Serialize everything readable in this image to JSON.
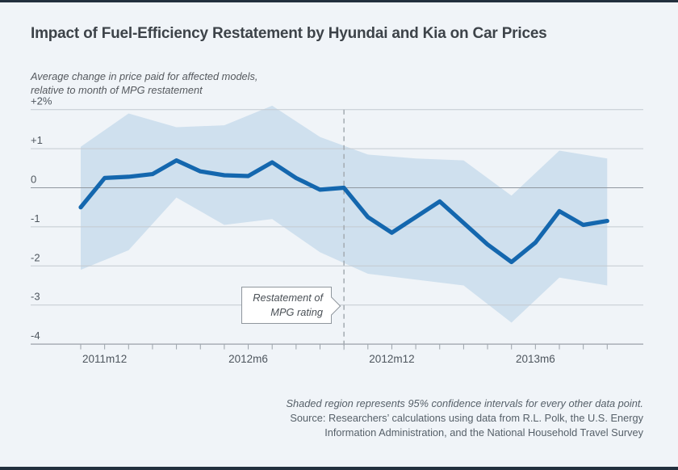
{
  "header": {
    "title": "Impact of Fuel-Efficiency Restatement by Hyundai and Kia on Car Prices",
    "subtitle_line1": "Average change in price paid for affected models,",
    "subtitle_line2": "relative to month of MPG restatement"
  },
  "annotation_box": {
    "line1": "Restatement of",
    "line2": "MPG rating"
  },
  "footer": {
    "note": "Shaded region represents 95% confidence intervals for every other data point.",
    "source_line1": "Source: Researchers’ calculations using data from R.L. Polk, the U.S. Energy",
    "source_line2": "Information Administration, and the National Household Travel Survey"
  },
  "colors": {
    "background": "#f0f4f8",
    "accent_line": "#1467ae",
    "ci_band": "#cfe0ee",
    "gridline": "#c3c9d0",
    "zero_line": "#9097a0",
    "axis": "#9aa1a9",
    "dash_line": "#a3aab1",
    "frame_bar": "#22303e",
    "tick_label": "#4e565e"
  },
  "chart_data": {
    "type": "line",
    "title": "Impact of Fuel-Efficiency Restatement by Hyundai and Kia on Car Prices",
    "ylabel": "Average change in price paid for affected models, relative to month of MPG restatement",
    "ylim": [
      -4,
      2
    ],
    "grid": true,
    "x": [
      "2011m11",
      "2011m12",
      "2012m1",
      "2012m2",
      "2012m3",
      "2012m4",
      "2012m5",
      "2012m6",
      "2012m7",
      "2012m8",
      "2012m9",
      "2012m10",
      "2012m11",
      "2012m12",
      "2013m1",
      "2013m2",
      "2013m3",
      "2013m4",
      "2013m5",
      "2013m6",
      "2013m7",
      "2013m8",
      "2013m9"
    ],
    "values": [
      -0.5,
      0.25,
      0.28,
      0.35,
      0.7,
      0.42,
      0.32,
      0.3,
      0.65,
      0.25,
      -0.05,
      0,
      -0.75,
      -1.15,
      -0.75,
      -0.35,
      -0.9,
      -1.45,
      -1.9,
      -1.4,
      -0.6,
      -0.95,
      -0.85
    ],
    "ci": [
      {
        "x": "2011m11",
        "lo": -2.1,
        "hi": 1.05
      },
      {
        "x": "2012m1",
        "lo": -1.6,
        "hi": 1.9
      },
      {
        "x": "2012m3",
        "lo": -0.25,
        "hi": 1.55
      },
      {
        "x": "2012m5",
        "lo": -0.95,
        "hi": 1.6
      },
      {
        "x": "2012m7",
        "lo": -0.8,
        "hi": 2.1
      },
      {
        "x": "2012m9",
        "lo": -1.65,
        "hi": 1.3
      },
      {
        "x": "2012m11",
        "lo": -2.2,
        "hi": 0.85
      },
      {
        "x": "2013m1",
        "lo": -2.35,
        "hi": 0.75
      },
      {
        "x": "2013m3",
        "lo": -2.5,
        "hi": 0.7
      },
      {
        "x": "2013m5",
        "lo": -3.45,
        "hi": -0.2
      },
      {
        "x": "2013m7",
        "lo": -2.3,
        "hi": 0.95
      },
      {
        "x": "2013m9",
        "lo": -2.5,
        "hi": 0.75
      }
    ],
    "y_ticks": [
      {
        "label": "+2%",
        "value": 2
      },
      {
        "label": "+1",
        "value": 1
      },
      {
        "label": "0",
        "value": 0
      },
      {
        "label": "-1",
        "value": -1
      },
      {
        "label": "-2",
        "value": -2
      },
      {
        "label": "-3",
        "value": -3
      },
      {
        "label": "-4",
        "value": -4
      }
    ],
    "x_tick_labels": [
      "2011m12",
      "2012m6",
      "2012m12",
      "2013m6"
    ],
    "event_x": "2012m10",
    "annotation": "Restatement of MPG rating",
    "note": "Shaded region represents 95% confidence intervals for every other data point.",
    "legend_position": "none"
  }
}
